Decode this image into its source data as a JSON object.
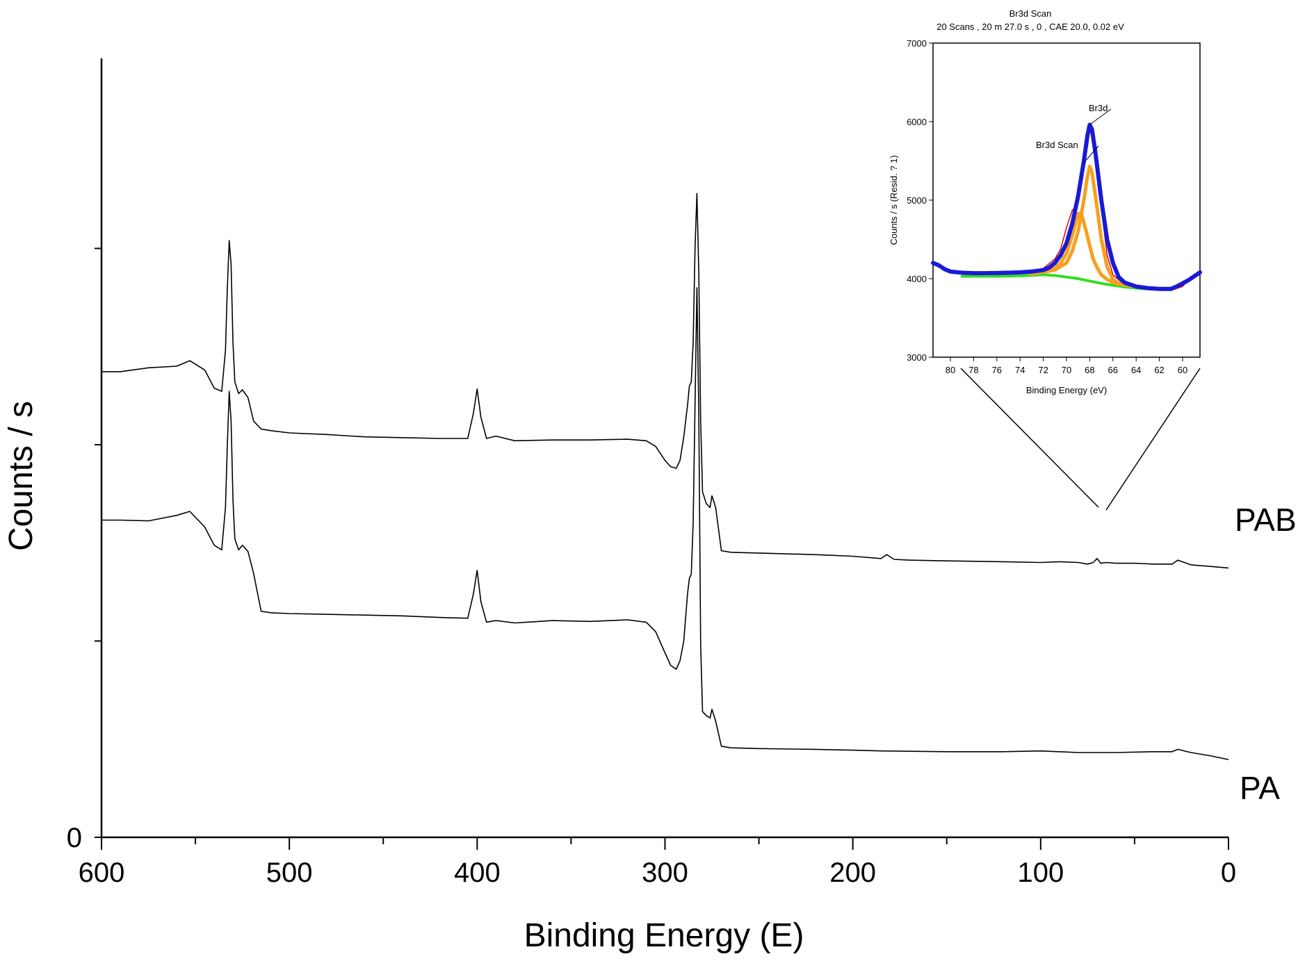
{
  "chart_data": [
    {
      "type": "line",
      "xlabel": "Binding Energy (E)",
      "ylabel": "Counts / s",
      "xlim": [
        600,
        0
      ],
      "x_ticks": [
        "600",
        "500",
        "400",
        "300",
        "200",
        "100",
        "0"
      ],
      "y_ticks": [
        "0"
      ],
      "grid": false,
      "legend": "none",
      "series": [
        {
          "name": "PAB",
          "color": "#000000",
          "values_note_units": "relative intensity (0-100 scale, stacked offset)",
          "x": [
            600,
            590,
            575,
            560,
            553,
            545,
            540,
            536,
            534,
            533,
            532,
            531,
            530,
            529,
            527,
            525,
            522,
            519,
            515,
            510,
            500,
            480,
            460,
            440,
            420,
            405,
            402,
            400,
            398,
            395,
            390,
            380,
            360,
            340,
            320,
            310,
            305,
            300,
            297,
            294,
            292,
            290,
            288,
            287,
            286,
            285,
            284,
            283,
            282,
            281,
            280,
            278,
            276,
            275,
            273,
            270,
            265,
            250,
            220,
            200,
            185,
            182,
            178,
            170,
            150,
            120,
            100,
            90,
            80,
            75,
            72,
            70,
            68,
            65,
            60,
            50,
            40,
            30,
            27,
            20,
            10,
            0
          ],
          "y": [
            59.3,
            59.3,
            59.8,
            60.0,
            60.7,
            59.5,
            57.2,
            56.8,
            62.0,
            70.0,
            76.0,
            73.0,
            63.0,
            58.0,
            56.5,
            57.0,
            56.0,
            53.0,
            52.0,
            51.8,
            51.5,
            51.3,
            51.0,
            50.9,
            50.8,
            50.8,
            54.0,
            57.1,
            53.5,
            50.8,
            51.1,
            50.5,
            50.6,
            50.6,
            50.7,
            50.5,
            49.8,
            48.0,
            47.2,
            47.0,
            48.0,
            51.0,
            55.0,
            57.5,
            58.0,
            63.0,
            75.0,
            82.0,
            72.0,
            53.0,
            44.0,
            42.5,
            42.0,
            43.5,
            42.0,
            36.5,
            36.3,
            36.2,
            36.0,
            35.8,
            35.5,
            36.0,
            35.4,
            35.3,
            35.2,
            35.1,
            35.0,
            35.1,
            35.0,
            34.8,
            35.0,
            35.5,
            34.9,
            35.0,
            34.9,
            34.9,
            34.8,
            34.8,
            35.3,
            34.7,
            34.5,
            34.3
          ]
        },
        {
          "name": "PA",
          "color": "#000000",
          "x": [
            600,
            590,
            575,
            560,
            553,
            545,
            540,
            536,
            534,
            533,
            532,
            531,
            530,
            529,
            527,
            525,
            522,
            519,
            515,
            510,
            500,
            480,
            460,
            440,
            420,
            405,
            402,
            400,
            398,
            395,
            390,
            380,
            360,
            340,
            320,
            310,
            305,
            300,
            297,
            294,
            292,
            290,
            288,
            287,
            286,
            285,
            284,
            283,
            282,
            281,
            280,
            278,
            276,
            275,
            273,
            270,
            265,
            250,
            220,
            200,
            185,
            150,
            120,
            100,
            80,
            60,
            40,
            30,
            27,
            20,
            10,
            0
          ],
          "y": [
            40.4,
            40.4,
            40.3,
            41.0,
            41.5,
            39.5,
            37.2,
            36.6,
            42.0,
            50.0,
            56.8,
            53.0,
            43.0,
            38.0,
            36.6,
            37.2,
            36.4,
            33.6,
            28.8,
            28.6,
            28.5,
            28.4,
            28.3,
            28.2,
            28.0,
            27.9,
            31.0,
            34.0,
            30.0,
            27.4,
            27.6,
            27.3,
            27.6,
            27.5,
            27.7,
            27.4,
            26.2,
            23.5,
            21.9,
            21.4,
            22.5,
            25.0,
            31.0,
            33.0,
            33.5,
            40.0,
            55.0,
            70.0,
            54.0,
            24.5,
            16.0,
            15.5,
            15.2,
            16.3,
            14.8,
            11.6,
            11.4,
            11.3,
            11.2,
            11.1,
            11.0,
            10.9,
            10.9,
            11.0,
            10.8,
            10.8,
            10.9,
            10.9,
            11.2,
            10.8,
            10.4,
            9.9
          ]
        }
      ],
      "annotations": [
        "PAB",
        "PA"
      ]
    },
    {
      "type": "line",
      "title": "Br3d Scan",
      "subtitle": "20 Scans ,  20 m 27.0 s ,  0 ,  CAE 20.0,  0.02 eV",
      "xlabel": "Binding Energy (eV)",
      "ylabel": "Counts / s  (Resid. ? 1)",
      "xlim": [
        81.5,
        58.5
      ],
      "ylim": [
        3000,
        7000
      ],
      "x_ticks": [
        "80",
        "78",
        "76",
        "74",
        "72",
        "70",
        "68",
        "66",
        "64",
        "62",
        "60"
      ],
      "y_ticks": [
        "3000",
        "4000",
        "5000",
        "6000",
        "7000"
      ],
      "grid": false,
      "annotations": [
        "Br3d",
        "Br3d Scan"
      ],
      "series": [
        {
          "name": "",
          "role": "raw-data",
          "color": "#dd0000",
          "x": [
            81.5,
            80,
            79,
            78,
            77,
            76,
            75,
            74,
            73,
            72,
            71,
            70.5,
            70,
            69.5,
            69,
            68.5,
            68,
            67.5,
            67,
            66.5,
            66,
            65,
            64,
            63,
            62,
            61,
            60,
            59.5,
            58.5
          ],
          "y": [
            4180,
            4110,
            4090,
            4080,
            4070,
            4070,
            4080,
            4090,
            4100,
            4130,
            4250,
            4380,
            4650,
            4870,
            4950,
            5450,
            5950,
            5600,
            4900,
            4300,
            4050,
            3920,
            3880,
            3860,
            3850,
            3850,
            3900,
            3980,
            4080
          ]
        },
        {
          "name": "",
          "role": "envelope",
          "color": "#1a1ad6",
          "x": [
            81.5,
            81,
            80.5,
            80,
            79,
            78,
            77,
            76,
            75,
            74,
            73,
            72,
            71.5,
            71,
            70.5,
            70,
            69.5,
            69,
            68.5,
            68.2,
            68,
            67.8,
            67.5,
            67,
            66.5,
            66,
            65.5,
            65,
            64,
            63,
            62,
            61,
            60.5,
            60,
            59.5,
            59,
            58.5
          ],
          "y": [
            4200,
            4170,
            4120,
            4090,
            4075,
            4070,
            4070,
            4072,
            4075,
            4080,
            4090,
            4110,
            4140,
            4200,
            4300,
            4450,
            4700,
            5050,
            5500,
            5820,
            5960,
            5900,
            5600,
            5000,
            4500,
            4200,
            4020,
            3950,
            3900,
            3880,
            3870,
            3870,
            3900,
            3940,
            3980,
            4030,
            4080
          ]
        },
        {
          "name": "",
          "role": "component",
          "color": "#f5a020",
          "x": [
            73,
            72,
            71,
            70.5,
            70,
            69.5,
            69,
            68.7,
            68.3,
            68,
            67.7,
            67.3,
            67,
            66.5,
            66,
            65.5,
            65,
            64
          ],
          "y": [
            4060,
            4090,
            4130,
            4200,
            4320,
            4550,
            4830,
            4820,
            4600,
            4420,
            4250,
            4120,
            4050,
            3990,
            3950,
            3930,
            3920,
            3900
          ]
        },
        {
          "name": "",
          "role": "component",
          "color": "#f5a020",
          "x": [
            73,
            71,
            70,
            69.5,
            69,
            68.5,
            68.2,
            68,
            67.8,
            67.5,
            67,
            66.5,
            66,
            65.5,
            65,
            64
          ],
          "y": [
            4060,
            4110,
            4200,
            4350,
            4600,
            5000,
            5300,
            5430,
            5350,
            5050,
            4500,
            4150,
            3990,
            3940,
            3920,
            3900
          ]
        },
        {
          "name": "",
          "role": "background",
          "color": "#33dd22",
          "x": [
            79,
            76,
            74,
            72,
            71,
            70,
            69,
            68,
            67,
            66,
            65,
            64,
            63,
            62,
            61
          ],
          "y": [
            4030,
            4030,
            4035,
            4050,
            4040,
            4020,
            4000,
            3970,
            3940,
            3915,
            3895,
            3880,
            3870,
            3865,
            3860
          ]
        }
      ]
    }
  ],
  "labels": {
    "pab": "PAB",
    "pa": "PA",
    "main_xlabel": "Binding Energy (E)",
    "main_ylabel": "Counts / s",
    "inset_title": "Br3d Scan",
    "inset_subtitle": "20 Scans ,  20 m 27.0 s ,  0 ,  CAE 20.0,  0.02 eV",
    "inset_xlabel": "Binding Energy (eV)",
    "inset_ylabel": "Counts / s  (Resid. ? 1)",
    "inset_peak_label": "Br3d",
    "inset_scan_label": "Br3d Scan"
  }
}
